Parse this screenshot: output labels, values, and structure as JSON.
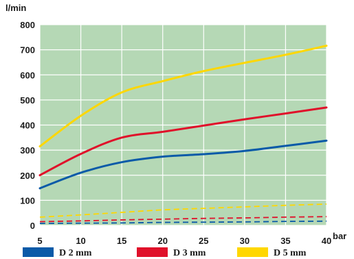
{
  "chart_data": {
    "type": "line",
    "xlabel": "bar",
    "ylabel": "l/min",
    "x": [
      5,
      10,
      15,
      20,
      25,
      30,
      35,
      40
    ],
    "xlim": [
      5,
      40
    ],
    "ylim": [
      0,
      800
    ],
    "x_ticks": [
      "5",
      "10",
      "15",
      "20",
      "25",
      "30",
      "35",
      "40"
    ],
    "y_ticks": [
      "0",
      "100",
      "200",
      "300",
      "400",
      "500",
      "600",
      "700",
      "800"
    ],
    "grid": true,
    "background": "#b5d8b5",
    "legend_position": "bottom",
    "series": [
      {
        "name": "D 2 mm",
        "color": "#0a5aa8",
        "style": "solid",
        "values": [
          148,
          210,
          252,
          274,
          284,
          297,
          317,
          338
        ]
      },
      {
        "name": "D 3 mm",
        "color": "#e0102a",
        "style": "solid",
        "values": [
          200,
          285,
          350,
          373,
          398,
          423,
          446,
          470
        ]
      },
      {
        "name": "D 5 mm",
        "color": "#ffd700",
        "style": "solid",
        "values": [
          315,
          437,
          530,
          575,
          615,
          648,
          680,
          716
        ]
      },
      {
        "name": "",
        "color": "#0a5aa8",
        "style": "dashed",
        "values": [
          8,
          9,
          10,
          12,
          13,
          14,
          16,
          17
        ]
      },
      {
        "name": "",
        "color": "#e0102a",
        "style": "dashed",
        "values": [
          15,
          18,
          22,
          25,
          28,
          30,
          33,
          35
        ]
      },
      {
        "name": "",
        "color": "#ffd700",
        "style": "dashed",
        "values": [
          33,
          42,
          52,
          62,
          68,
          74,
          80,
          85
        ]
      }
    ]
  }
}
